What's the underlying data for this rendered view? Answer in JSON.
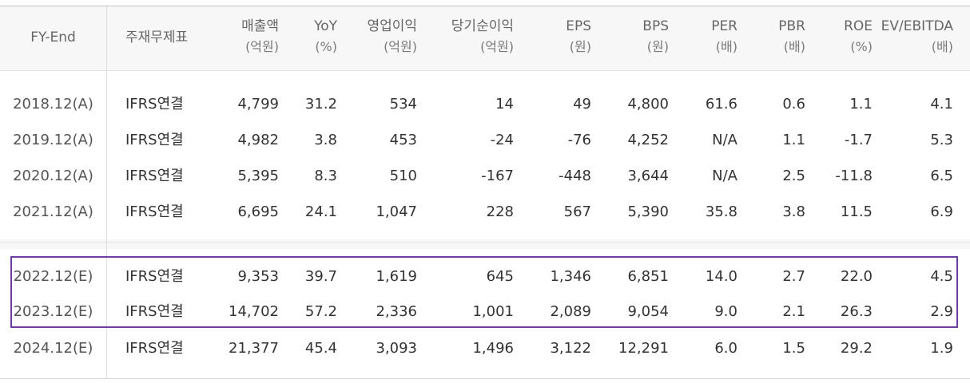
{
  "headers": [
    {
      "key": "period",
      "label": "FY-End",
      "unit": ""
    },
    {
      "key": "basis",
      "label": "주재무제표",
      "unit": ""
    },
    {
      "key": "revenue",
      "label": "매출액",
      "unit": "(억원)"
    },
    {
      "key": "yoy",
      "label": "YoY",
      "unit": "(%)"
    },
    {
      "key": "op",
      "label": "영업이익",
      "unit": "(억원)"
    },
    {
      "key": "net",
      "label": "당기순이익",
      "unit": "(억원)"
    },
    {
      "key": "eps",
      "label": "EPS",
      "unit": "(원)"
    },
    {
      "key": "bps",
      "label": "BPS",
      "unit": "(원)"
    },
    {
      "key": "per",
      "label": "PER",
      "unit": "(배)"
    },
    {
      "key": "pbr",
      "label": "PBR",
      "unit": "(배)"
    },
    {
      "key": "roe",
      "label": "ROE",
      "unit": "(%)"
    },
    {
      "key": "ev",
      "label": "EV/EBITDA",
      "unit": "(배)"
    }
  ],
  "rows": [
    {
      "period": "2018.12(A)",
      "basis": "IFRS연결",
      "revenue": "4,799",
      "yoy": "31.2",
      "op": "534",
      "net": "14",
      "eps": "49",
      "bps": "4,800",
      "per": "61.6",
      "pbr": "0.6",
      "roe": "1.1",
      "ev": "4.1"
    },
    {
      "period": "2019.12(A)",
      "basis": "IFRS연결",
      "revenue": "4,982",
      "yoy": "3.8",
      "op": "453",
      "net": "-24",
      "eps": "-76",
      "bps": "4,252",
      "per": "N/A",
      "pbr": "1.1",
      "roe": "-1.7",
      "ev": "5.3"
    },
    {
      "period": "2020.12(A)",
      "basis": "IFRS연결",
      "revenue": "5,395",
      "yoy": "8.3",
      "op": "510",
      "net": "-167",
      "eps": "-448",
      "bps": "3,644",
      "per": "N/A",
      "pbr": "2.5",
      "roe": "-11.8",
      "ev": "6.5"
    },
    {
      "period": "2021.12(A)",
      "basis": "IFRS연결",
      "revenue": "6,695",
      "yoy": "24.1",
      "op": "1,047",
      "net": "228",
      "eps": "567",
      "bps": "5,390",
      "per": "35.8",
      "pbr": "3.8",
      "roe": "11.5",
      "ev": "6.9"
    },
    {
      "period": "2022.12(E)",
      "basis": "IFRS연결",
      "revenue": "9,353",
      "yoy": "39.7",
      "op": "1,619",
      "net": "645",
      "eps": "1,346",
      "bps": "6,851",
      "per": "14.0",
      "pbr": "2.7",
      "roe": "22.0",
      "ev": "4.5"
    },
    {
      "period": "2023.12(E)",
      "basis": "IFRS연결",
      "revenue": "14,702",
      "yoy": "57.2",
      "op": "2,336",
      "net": "1,001",
      "eps": "2,089",
      "bps": "9,054",
      "per": "9.0",
      "pbr": "2.1",
      "roe": "26.3",
      "ev": "2.9"
    },
    {
      "period": "2024.12(E)",
      "basis": "IFRS연결",
      "revenue": "21,377",
      "yoy": "45.4",
      "op": "3,093",
      "net": "1,496",
      "eps": "3,122",
      "bps": "12,291",
      "per": "6.0",
      "pbr": "1.5",
      "roe": "29.2",
      "ev": "1.9"
    }
  ],
  "colors": {
    "highlight_border": "#6b3fa0",
    "header_bg": "#f7f7f7"
  }
}
